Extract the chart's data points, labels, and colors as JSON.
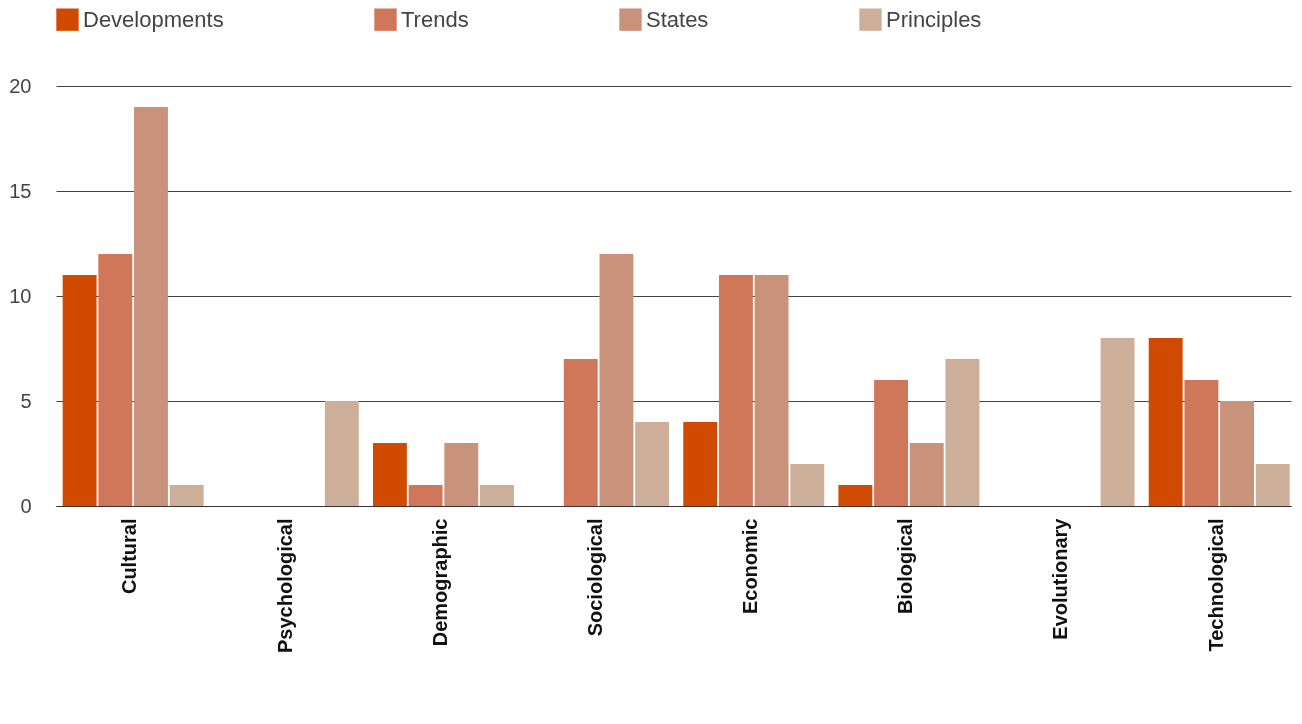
{
  "chart_data": {
    "type": "bar",
    "categories": [
      "Cultural",
      "Psychological",
      "Demographic",
      "Sociological",
      "Economic",
      "Biological",
      "Evolutionary",
      "Technological"
    ],
    "series": [
      {
        "name": "Developments",
        "color": "#d14a02",
        "values": [
          11,
          0,
          3,
          0,
          4,
          1,
          0,
          8
        ]
      },
      {
        "name": "Trends",
        "color": "#d0775a",
        "values": [
          12,
          0,
          1,
          7,
          11,
          6,
          0,
          6
        ]
      },
      {
        "name": "States",
        "color": "#c9927b",
        "values": [
          19,
          0,
          3,
          12,
          11,
          3,
          0,
          5
        ]
      },
      {
        "name": "Principles",
        "color": "#ccae99",
        "values": [
          1,
          5,
          1,
          4,
          2,
          7,
          8,
          2
        ]
      }
    ],
    "ylim": [
      0,
      20
    ],
    "yticks": [
      0,
      5,
      10,
      15,
      20
    ],
    "grid": "y",
    "legend": "top"
  }
}
